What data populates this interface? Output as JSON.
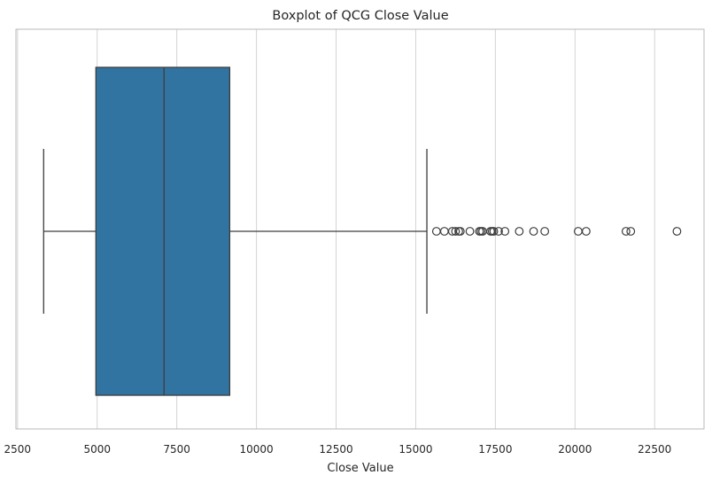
{
  "chart_data": {
    "type": "box",
    "orientation": "horizontal",
    "title": "Boxplot of QCG Close Value",
    "xlabel": "Close Value",
    "ylabel": "",
    "xlim": [
      2450,
      24050
    ],
    "xticks": [
      2500,
      5000,
      7500,
      10000,
      12500,
      15000,
      17500,
      20000,
      22500
    ],
    "grid": "vertical",
    "box": {
      "whisker_low": 3320,
      "q1": 4960,
      "median": 7100,
      "q3": 9160,
      "whisker_high": 15350
    },
    "outliers": [
      15650,
      15900,
      16150,
      16250,
      16350,
      16400,
      16700,
      17000,
      17050,
      17100,
      17350,
      17400,
      17450,
      17600,
      17800,
      18250,
      18700,
      19050,
      20100,
      20350,
      21600,
      21750,
      23200
    ],
    "colors": {
      "box_fill": "#3274a1",
      "line": "#3d3d3d",
      "grid": "#d4d4d4",
      "frame": "#b8b8b8"
    }
  }
}
